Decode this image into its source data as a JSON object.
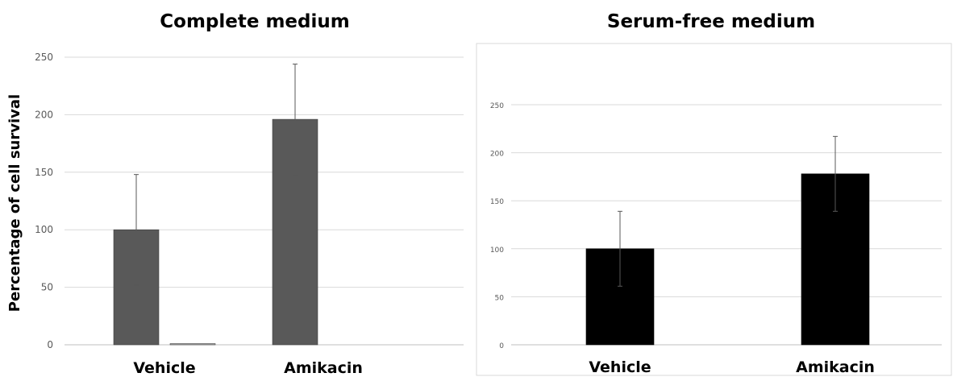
{
  "chart_data": [
    {
      "type": "bar",
      "title": "Complete medium",
      "ylabel": "Percentage of cell survival",
      "xlabel": "",
      "ylim": [
        0,
        250
      ],
      "yticks": [
        0,
        50,
        100,
        150,
        200,
        250
      ],
      "grid": true,
      "legend": "none",
      "categories": [
        "Vehicle",
        "Amikacin"
      ],
      "series": [
        {
          "values": [
            100,
            196
          ],
          "errors": [
            48,
            48
          ],
          "color": "#595959"
        },
        {
          "values": [
            1,
            0
          ],
          "errors": [
            0,
            0
          ],
          "color": "#a6a6a6"
        }
      ]
    },
    {
      "type": "bar",
      "title": "Serum-free medium",
      "ylabel": "",
      "xlabel": "",
      "ylim": [
        0,
        250
      ],
      "yticks": [
        0,
        50,
        100,
        150,
        200,
        250
      ],
      "grid": true,
      "legend": "none",
      "categories": [
        "Vehicle",
        "Amikacin"
      ],
      "series": [
        {
          "values": [
            100,
            178
          ],
          "errors": [
            39,
            39
          ],
          "color": "#000000"
        }
      ]
    }
  ]
}
